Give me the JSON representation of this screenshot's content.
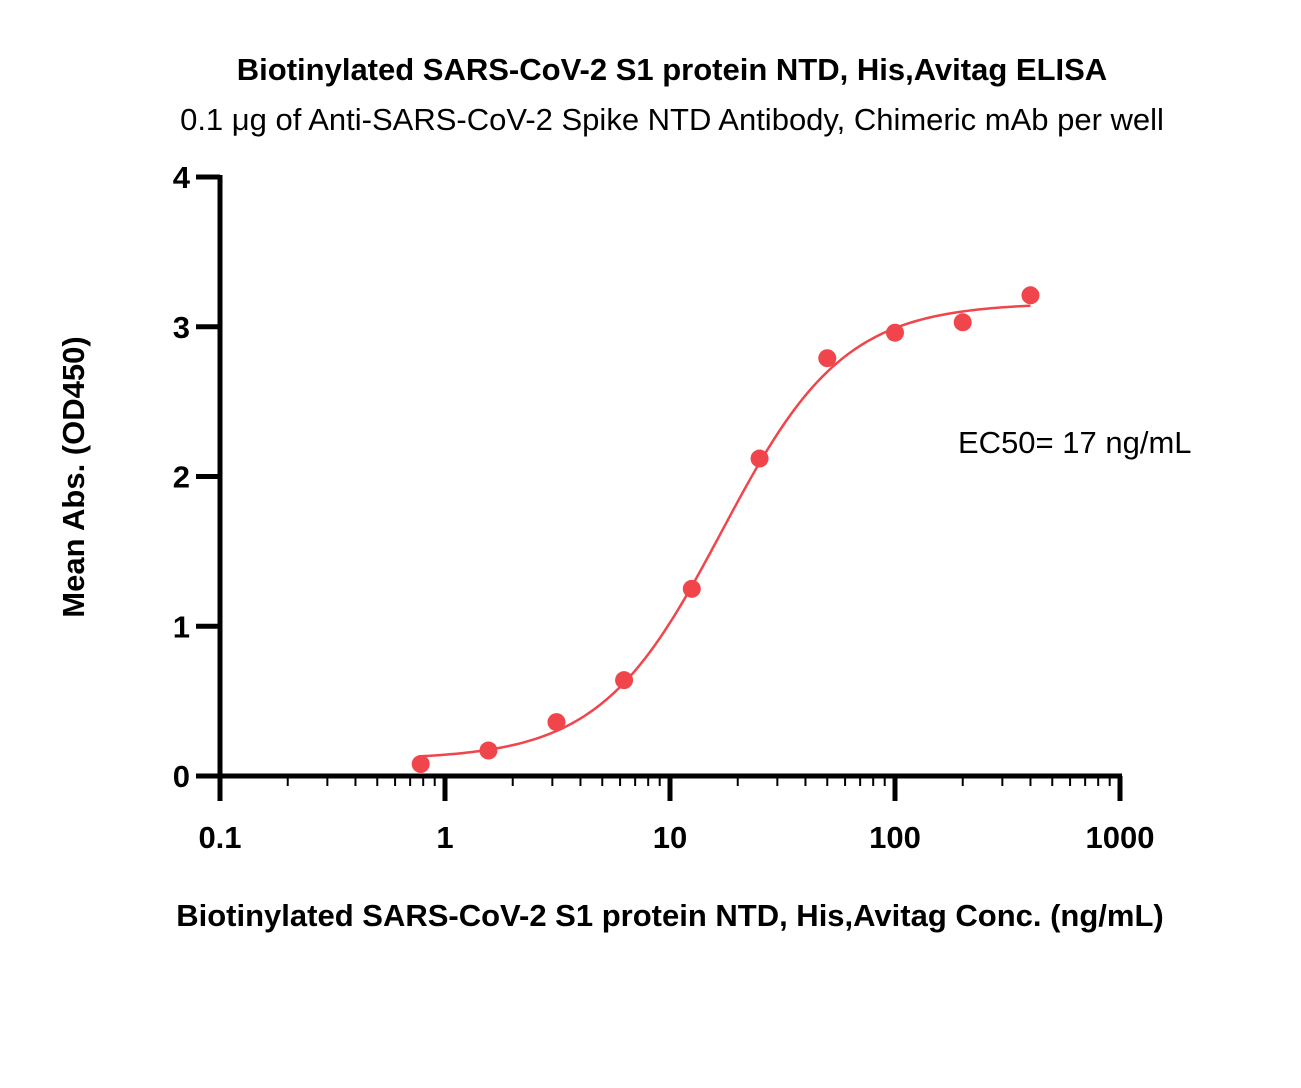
{
  "chart_data": {
    "type": "scatter",
    "title": "Biotinylated SARS-CoV-2 S1 protein NTD, His,Avitag ELISA",
    "subtitle": "0.1 μg of Anti-SARS-CoV-2 Spike NTD Antibody, Chimeric mAb per well",
    "xlabel": "Biotinylated SARS-CoV-2 S1 protein NTD, His,Avitag Conc. (ng/mL)",
    "ylabel": "Mean Abs. (OD450)",
    "xscale": "log",
    "xlim": [
      0.1,
      1000
    ],
    "ylim": [
      0,
      4
    ],
    "xticks": [
      0.1,
      1,
      10,
      100,
      1000
    ],
    "xtick_labels": [
      "0.1",
      "1",
      "10",
      "100",
      "1000"
    ],
    "yticks": [
      0,
      1,
      2,
      3,
      4
    ],
    "ytick_labels": [
      "0",
      "1",
      "2",
      "3",
      "4"
    ],
    "grid": false,
    "legend": "none",
    "series": [
      {
        "color": "#f0454b",
        "points": [
          {
            "x": 0.78,
            "y": 0.08
          },
          {
            "x": 1.56,
            "y": 0.17
          },
          {
            "x": 3.13,
            "y": 0.36
          },
          {
            "x": 6.25,
            "y": 0.64
          },
          {
            "x": 12.5,
            "y": 1.25
          },
          {
            "x": 25,
            "y": 2.12
          },
          {
            "x": 50,
            "y": 2.79
          },
          {
            "x": 100,
            "y": 2.96
          },
          {
            "x": 200,
            "y": 3.03
          },
          {
            "x": 400,
            "y": 3.21
          }
        ],
        "fit": {
          "model": "4PL",
          "bottom": 0.11,
          "top": 3.16,
          "ec50": 17,
          "hill": 1.6,
          "x_range": [
            0.78,
            400
          ]
        }
      }
    ],
    "annotations": [
      {
        "text": "EC50= 17 ng/mL"
      }
    ]
  }
}
